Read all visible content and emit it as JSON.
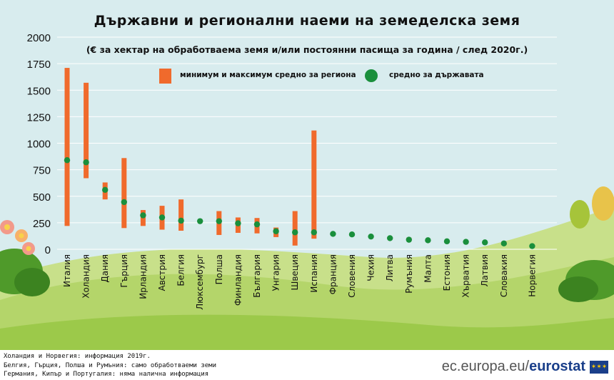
{
  "title": "Държавни и регионални наеми на земеделска земя",
  "subtitle": "(€ за хектар на обработваема земя и/или постоянни пасища за година / след 2020г.)",
  "legend": {
    "range_label": "минимум и максимум средно за региона",
    "avg_label": "средно за държавата"
  },
  "colors": {
    "range": "#f06a2c",
    "avg": "#1a8f3c",
    "grid": "#ffffff",
    "sky": "#d8ecee",
    "hill_light": "#c8e08a",
    "hill_dark": "#9cc94a"
  },
  "notes": [
    "Холандия и Норвегия: информация 2019г.",
    "Белгия, Гърция, Полша и Румъния: само обработваеми земи",
    "Германия, Кипър и Португалия: няма налична информация"
  ],
  "brand": {
    "prefix": "ec.europa.eu/",
    "name": "eurostat"
  },
  "chart_data": {
    "type": "range-dot",
    "title": "Държавни и регионални наеми на земеделска земя",
    "subtitle": "(€ за хектар на обработваема земя и/или постоянни пасища за година / след 2020г.)",
    "ylim": [
      0,
      2000
    ],
    "yticks": [
      "0",
      "250",
      "500",
      "750",
      "1000",
      "1250",
      "1500",
      "1750",
      "2000"
    ],
    "grid": true,
    "legend_position": "top-center",
    "categories": [
      "Италия",
      "Холандия",
      "Дания",
      "Гърция",
      "Ирландия",
      "Австрия",
      "Белгия",
      "Люксембург",
      "Полша",
      "Финландия",
      "България",
      "Унгария",
      "Швеция",
      "Испания",
      "Франция",
      "Словения",
      "Чехия",
      "Литва",
      "Румъния",
      "Малта",
      "Естония",
      "Хърватия",
      "Латвия",
      "Словакия",
      "Норвегия"
    ],
    "series": [
      {
        "name": "минимум и максимум средно за региона",
        "min": [
          220,
          670,
          470,
          200,
          220,
          185,
          175,
          null,
          135,
          155,
          150,
          115,
          35,
          100,
          null,
          null,
          null,
          null,
          80,
          null,
          null,
          null,
          null,
          40,
          null
        ],
        "max": [
          1710,
          1570,
          630,
          860,
          370,
          410,
          470,
          null,
          360,
          300,
          295,
          205,
          360,
          1120,
          null,
          null,
          null,
          null,
          110,
          null,
          null,
          null,
          null,
          75,
          null
        ]
      },
      {
        "name": "средно за държавата",
        "values": [
          840,
          820,
          560,
          445,
          320,
          300,
          270,
          265,
          265,
          245,
          235,
          170,
          160,
          160,
          145,
          140,
          120,
          105,
          90,
          85,
          75,
          70,
          65,
          55,
          30
        ]
      }
    ]
  }
}
